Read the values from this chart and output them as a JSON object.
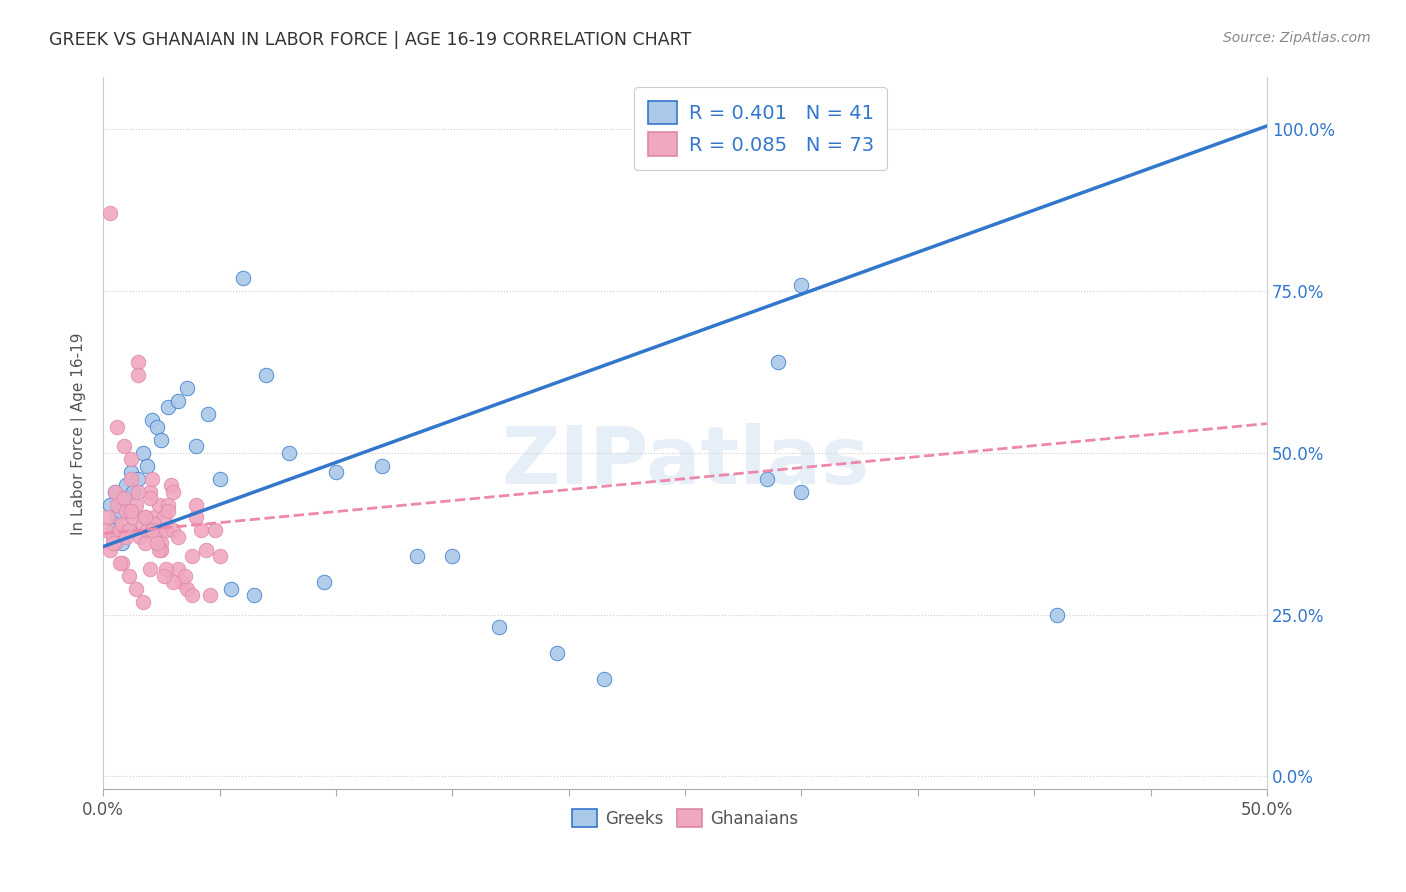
{
  "title": "GREEK VS GHANAIAN IN LABOR FORCE | AGE 16-19 CORRELATION CHART",
  "source": "Source: ZipAtlas.com",
  "ylabel": "In Labor Force | Age 16-19",
  "xlim": [
    0.0,
    0.5
  ],
  "ylim": [
    -0.02,
    1.08
  ],
  "xticks": [
    0.0,
    0.05,
    0.1,
    0.15,
    0.2,
    0.25,
    0.3,
    0.35,
    0.4,
    0.45,
    0.5
  ],
  "yticks": [
    0.0,
    0.25,
    0.5,
    0.75,
    1.0
  ],
  "greek_color": "#aac8e8",
  "ghanaian_color": "#f0a8c0",
  "greek_line_color": "#3377cc",
  "ghanaian_line_color": "#ee88aa",
  "watermark": "ZIPatlas",
  "legend_greek_R": 0.401,
  "legend_greek_N": 41,
  "legend_ghanaian_R": 0.085,
  "legend_ghanaian_N": 73,
  "greek_x": [
    0.003,
    0.004,
    0.005,
    0.006,
    0.007,
    0.008,
    0.009,
    0.01,
    0.011,
    0.012,
    0.013,
    0.015,
    0.017,
    0.019,
    0.021,
    0.023,
    0.025,
    0.028,
    0.032,
    0.036,
    0.04,
    0.045,
    0.05,
    0.06,
    0.07,
    0.08,
    0.1,
    0.12,
    0.135,
    0.15,
    0.17,
    0.195,
    0.215,
    0.3,
    0.095,
    0.055,
    0.065,
    0.285,
    0.41,
    0.29,
    0.3
  ],
  "greek_y": [
    0.42,
    0.38,
    0.44,
    0.4,
    0.41,
    0.36,
    0.43,
    0.45,
    0.38,
    0.47,
    0.44,
    0.46,
    0.5,
    0.48,
    0.55,
    0.54,
    0.52,
    0.57,
    0.58,
    0.6,
    0.51,
    0.56,
    0.46,
    0.77,
    0.62,
    0.5,
    0.47,
    0.48,
    0.34,
    0.34,
    0.23,
    0.19,
    0.15,
    0.76,
    0.3,
    0.29,
    0.28,
    0.46,
    0.25,
    0.64,
    0.44
  ],
  "ghanaian_x": [
    0.001,
    0.002,
    0.003,
    0.004,
    0.005,
    0.006,
    0.007,
    0.008,
    0.009,
    0.01,
    0.011,
    0.012,
    0.013,
    0.014,
    0.015,
    0.016,
    0.017,
    0.018,
    0.019,
    0.02,
    0.021,
    0.022,
    0.023,
    0.024,
    0.025,
    0.026,
    0.027,
    0.028,
    0.029,
    0.03,
    0.032,
    0.034,
    0.036,
    0.038,
    0.04,
    0.042,
    0.044,
    0.046,
    0.048,
    0.05,
    0.005,
    0.008,
    0.01,
    0.012,
    0.015,
    0.018,
    0.02,
    0.022,
    0.025,
    0.028,
    0.03,
    0.032,
    0.035,
    0.038,
    0.04,
    0.003,
    0.006,
    0.009,
    0.012,
    0.015,
    0.018,
    0.021,
    0.024,
    0.027,
    0.03,
    0.004,
    0.007,
    0.011,
    0.014,
    0.017,
    0.02,
    0.023,
    0.026
  ],
  "ghanaian_y": [
    0.38,
    0.4,
    0.35,
    0.37,
    0.44,
    0.42,
    0.38,
    0.39,
    0.43,
    0.41,
    0.38,
    0.46,
    0.4,
    0.42,
    0.64,
    0.37,
    0.39,
    0.4,
    0.38,
    0.44,
    0.46,
    0.4,
    0.38,
    0.42,
    0.36,
    0.4,
    0.38,
    0.42,
    0.45,
    0.38,
    0.32,
    0.3,
    0.29,
    0.34,
    0.4,
    0.38,
    0.35,
    0.28,
    0.38,
    0.34,
    0.36,
    0.33,
    0.37,
    0.41,
    0.62,
    0.36,
    0.43,
    0.39,
    0.35,
    0.41,
    0.44,
    0.37,
    0.31,
    0.28,
    0.42,
    0.87,
    0.54,
    0.51,
    0.49,
    0.44,
    0.4,
    0.38,
    0.35,
    0.32,
    0.3,
    0.36,
    0.33,
    0.31,
    0.29,
    0.27,
    0.32,
    0.36,
    0.31
  ]
}
